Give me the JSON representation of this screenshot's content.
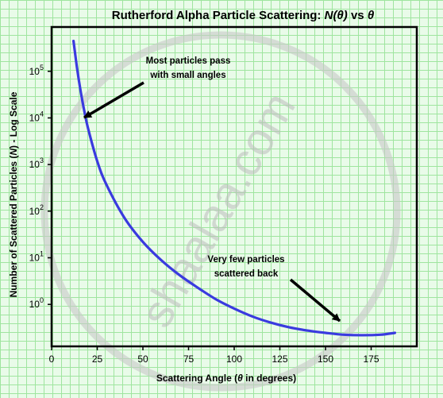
{
  "chart_data": {
    "type": "line",
    "title": {
      "prefix": "Rutherford Alpha Particle Scattering: ",
      "italic1": "N(θ)",
      "middle": " vs ",
      "italic2": "θ"
    },
    "xlabel": {
      "prefix": "Scattering Angle (",
      "italic": "θ",
      "suffix": " in degrees)"
    },
    "ylabel": {
      "prefix": "Number of Scattered Particles (",
      "italic": "N",
      "suffix": ") - Log Scale"
    },
    "xlim": [
      0,
      200
    ],
    "ylim_log10": [
      -0.9,
      5.95
    ],
    "x_ticks": [
      0,
      25,
      50,
      75,
      100,
      125,
      150,
      175
    ],
    "y_ticks": [
      {
        "base": "10",
        "exp": "0",
        "log10": 0
      },
      {
        "base": "10",
        "exp": "1",
        "log10": 1
      },
      {
        "base": "10",
        "exp": "2",
        "log10": 2
      },
      {
        "base": "10",
        "exp": "3",
        "log10": 3
      },
      {
        "base": "10",
        "exp": "4",
        "log10": 4
      },
      {
        "base": "10",
        "exp": "5",
        "log10": 5
      }
    ],
    "y_scale": "log",
    "grid": true,
    "series": [
      {
        "color": "#3a3adf",
        "x": [
          12,
          14,
          16,
          18,
          20,
          25,
          30,
          40,
          50,
          60,
          70,
          80,
          90,
          100,
          110,
          120,
          130,
          140,
          150,
          160,
          170,
          180,
          188
        ],
        "log10_y": [
          5.65,
          5.05,
          4.55,
          4.13,
          3.77,
          3.07,
          2.57,
          1.85,
          1.34,
          0.95,
          0.63,
          0.36,
          0.11,
          -0.09,
          -0.26,
          -0.39,
          -0.49,
          -0.56,
          -0.61,
          -0.65,
          -0.66,
          -0.65,
          -0.61
        ]
      }
    ],
    "annotations": [
      {
        "lines": [
          "Most particles pass",
          "with small angles"
        ]
      },
      {
        "lines": [
          "Very few particles",
          "scattered back"
        ]
      }
    ],
    "watermark": "shaalaa.com"
  }
}
